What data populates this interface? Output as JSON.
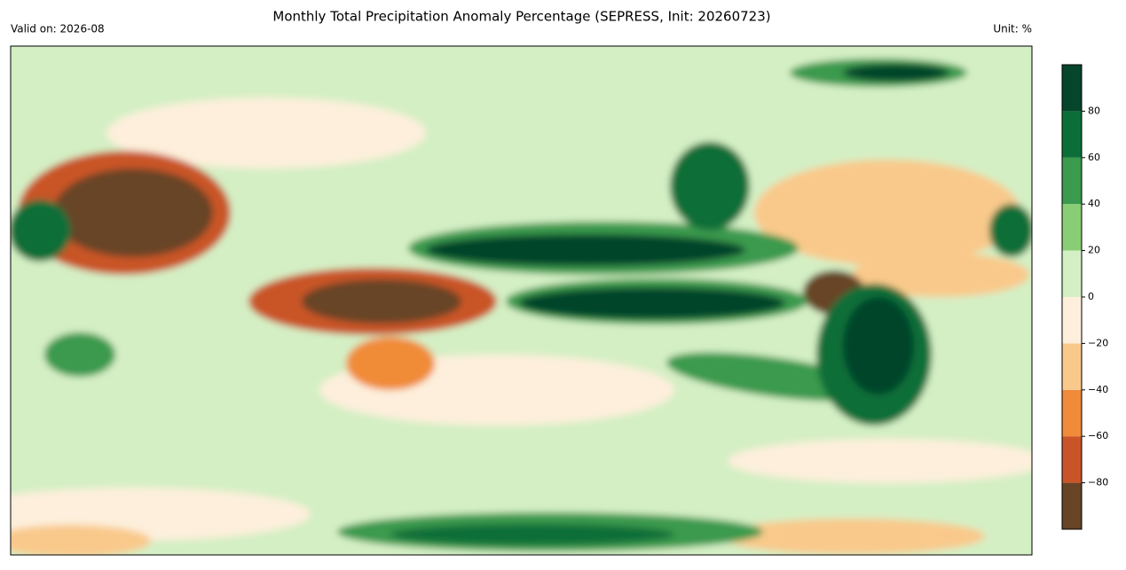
{
  "title": "Monthly Total Precipitation Anomaly Percentage (SEPRESS, Init: 20260723)",
  "valid_on": "Valid on: 2026-08",
  "unit": "Unit: %",
  "colorbar": {
    "range": [
      -100,
      100
    ],
    "boundaries": [
      -100,
      -80,
      -60,
      -40,
      -20,
      0,
      20,
      40,
      60,
      80,
      100
    ],
    "colors": [
      "#674425",
      "#c95428",
      "#f08b39",
      "#f9c98b",
      "#fdefdb",
      "#d4efc4",
      "#89cd75",
      "#3a9a4d",
      "#0b6e38",
      "#05452b"
    ],
    "ticks": [
      {
        "value": -80,
        "label": "−80"
      },
      {
        "value": -60,
        "label": "−60"
      },
      {
        "value": -40,
        "label": "−40"
      },
      {
        "value": -20,
        "label": "−20"
      },
      0,
      20,
      40,
      60,
      80
    ]
  }
}
